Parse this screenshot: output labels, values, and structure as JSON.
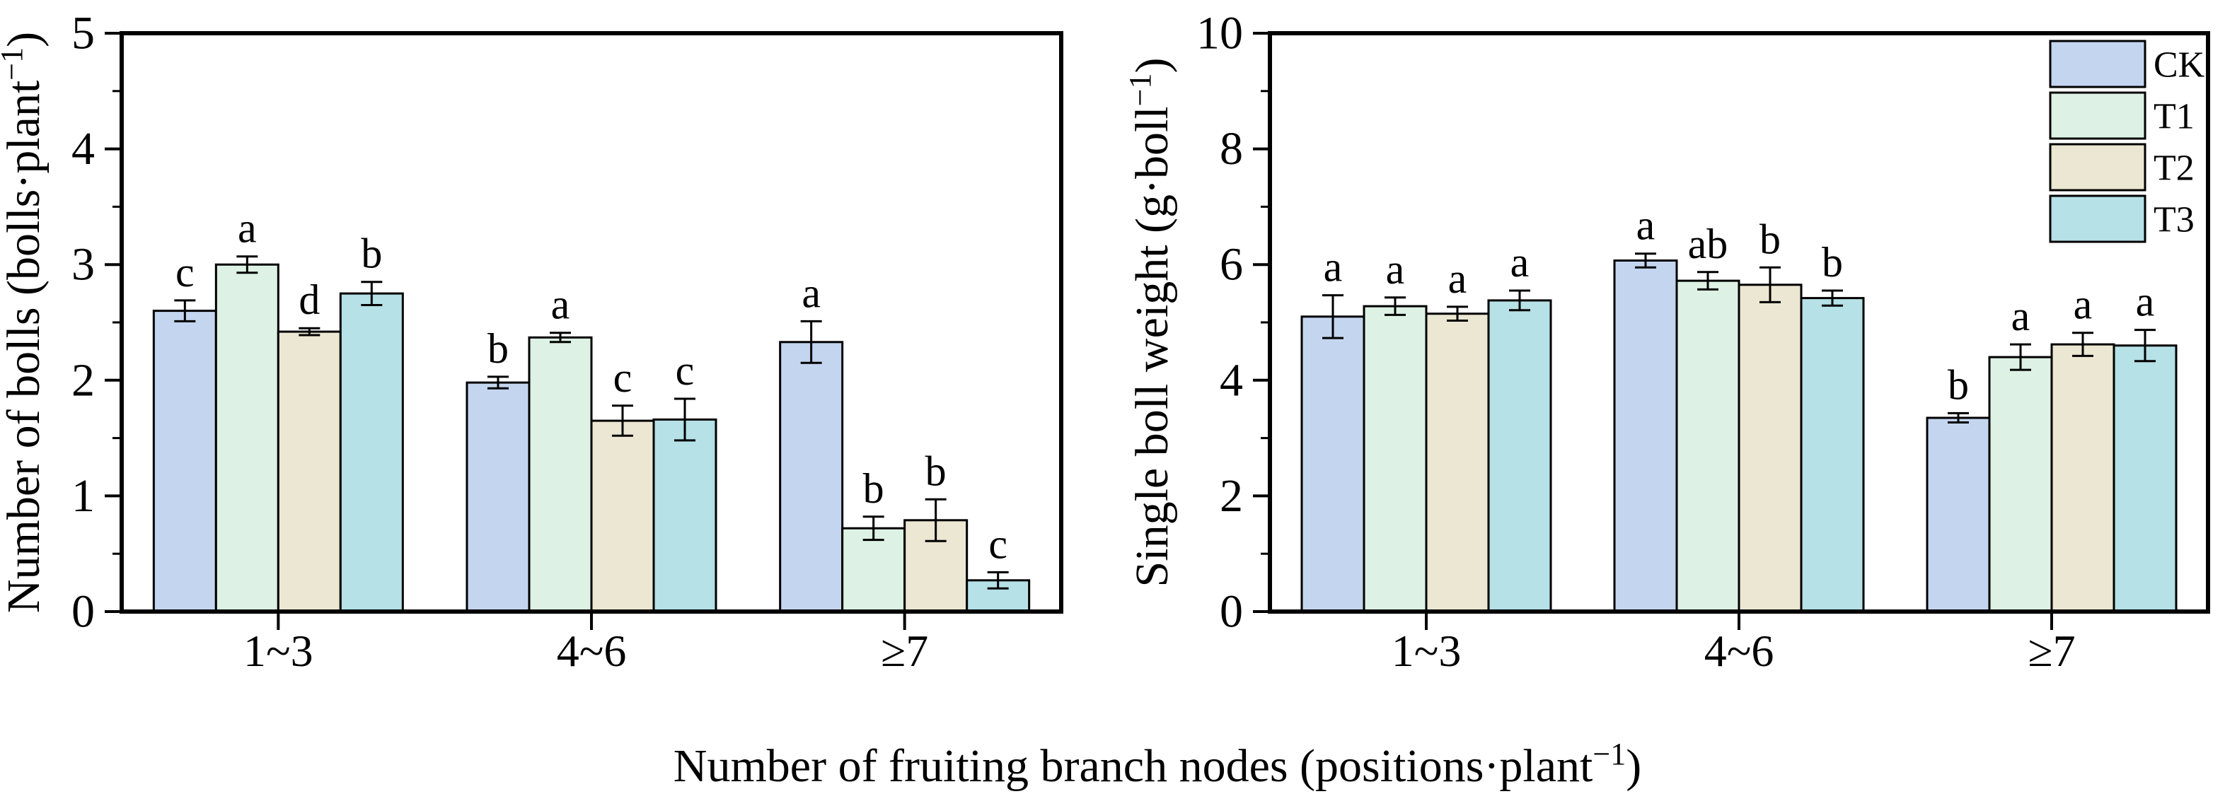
{
  "figure": {
    "shared_xlabel": {
      "prefix": "Number of fruiting branch nodes (positions·plant",
      "superscript": "−1",
      "suffix": ")"
    },
    "background": "#ffffff",
    "axis_color": "#000000",
    "text_color": "#000000"
  },
  "legend": {
    "position": "top-right inside right chart",
    "entries": [
      "CK",
      "T1",
      "T2",
      "T3"
    ]
  },
  "series_colors": {
    "CK": "#c4d5ef",
    "T1": "#ddf2e4",
    "T2": "#ece7d2",
    "T3": "#b5e1e7"
  },
  "chart_data": [
    {
      "type": "bar",
      "title": "",
      "ylabel": {
        "prefix": "Number of bolls (bolls·plant",
        "superscript": "−1",
        "suffix": ")"
      },
      "ylim": [
        0,
        5
      ],
      "ytick_major_step": 1,
      "ytick_minor_step": 0.5,
      "ytick_labels": [
        "0",
        "1",
        "2",
        "3",
        "4",
        "5"
      ],
      "grid": false,
      "legend": false,
      "categories": [
        "1~3",
        "4~6",
        "≥7"
      ],
      "series": [
        {
          "name": "CK",
          "color": "#c4d5ef",
          "values": [
            2.6,
            1.98,
            2.33
          ],
          "errors": [
            0.09,
            0.05,
            0.18
          ],
          "sig_letters": [
            "c",
            "b",
            "a"
          ]
        },
        {
          "name": "T1",
          "color": "#ddf2e4",
          "values": [
            3.0,
            2.37,
            0.72
          ],
          "errors": [
            0.07,
            0.04,
            0.1
          ],
          "sig_letters": [
            "a",
            "a",
            "b"
          ]
        },
        {
          "name": "T2",
          "color": "#ece7d2",
          "values": [
            2.42,
            1.65,
            0.79
          ],
          "errors": [
            0.03,
            0.13,
            0.18
          ],
          "sig_letters": [
            "d",
            "c",
            "b"
          ]
        },
        {
          "name": "T3",
          "color": "#b5e1e7",
          "values": [
            2.75,
            1.66,
            0.27
          ],
          "errors": [
            0.1,
            0.18,
            0.07
          ],
          "sig_letters": [
            "b",
            "c",
            "c"
          ]
        }
      ]
    },
    {
      "type": "bar",
      "title": "",
      "ylabel": {
        "prefix": "Single boll weight (g·boll",
        "superscript": "−1",
        "suffix": ")"
      },
      "ylim": [
        0,
        10
      ],
      "ytick_major_step": 2,
      "ytick_minor_step": 1,
      "ytick_labels": [
        "0",
        "2",
        "4",
        "6",
        "8",
        "10"
      ],
      "grid": false,
      "legend": true,
      "categories": [
        "1~3",
        "4~6",
        "≥7"
      ],
      "series": [
        {
          "name": "CK",
          "color": "#c4d5ef",
          "values": [
            5.1,
            6.07,
            3.35
          ],
          "errors": [
            0.37,
            0.12,
            0.08
          ],
          "sig_letters": [
            "a",
            "a",
            "b"
          ]
        },
        {
          "name": "T1",
          "color": "#ddf2e4",
          "values": [
            5.28,
            5.72,
            4.4
          ],
          "errors": [
            0.15,
            0.15,
            0.22
          ],
          "sig_letters": [
            "a",
            "ab",
            "a"
          ]
        },
        {
          "name": "T2",
          "color": "#ece7d2",
          "values": [
            5.15,
            5.65,
            4.62
          ],
          "errors": [
            0.12,
            0.3,
            0.2
          ],
          "sig_letters": [
            "a",
            "b",
            "a"
          ]
        },
        {
          "name": "T3",
          "color": "#b5e1e7",
          "values": [
            5.38,
            5.42,
            4.6
          ],
          "errors": [
            0.17,
            0.13,
            0.27
          ],
          "sig_letters": [
            "a",
            "b",
            "a"
          ]
        }
      ]
    }
  ]
}
